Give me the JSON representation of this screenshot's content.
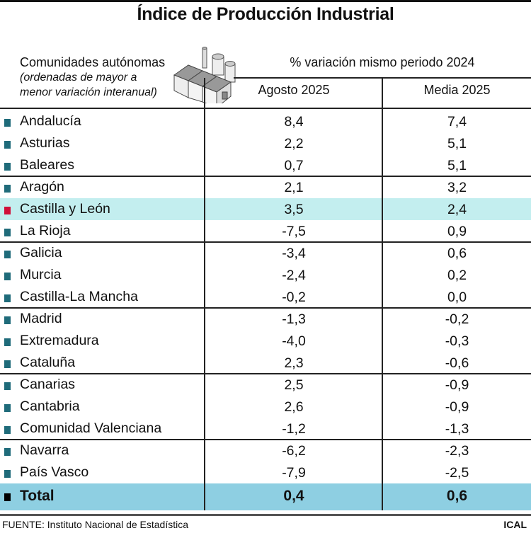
{
  "title": "Índice de Producción Industrial",
  "header": {
    "row_label": "Comunidades autónomas",
    "row_note_1": "(ordenadas de mayor a",
    "row_note_2": "menor variación interanual)",
    "super_header": "% variación mismo periodo 2024",
    "icon": "factory-icon"
  },
  "colors": {
    "marker": "#1f6b7a",
    "highlight_marker": "#d0103a",
    "highlight_row": "#c3eeef",
    "total_row": "#8ecfe2"
  },
  "chart_data": {
    "type": "table",
    "title": "Índice de Producción Industrial",
    "columns": [
      "Agosto 2025",
      "Media 2025"
    ],
    "rows": [
      {
        "name": "Andalucía",
        "agosto": "8,4",
        "media": "7,4"
      },
      {
        "name": "Asturias",
        "agosto": "2,2",
        "media": "5,1"
      },
      {
        "name": "Baleares",
        "agosto": "0,7",
        "media": "5,1"
      },
      {
        "name": "Aragón",
        "agosto": "2,1",
        "media": "3,2"
      },
      {
        "name": "Castilla y León",
        "agosto": "3,5",
        "media": "2,4",
        "highlighted": true
      },
      {
        "name": "La Rioja",
        "agosto": "-7,5",
        "media": "0,9"
      },
      {
        "name": "Galicia",
        "agosto": "-3,4",
        "media": "0,6"
      },
      {
        "name": "Murcia",
        "agosto": "-2,4",
        "media": "0,2"
      },
      {
        "name": "Castilla-La Mancha",
        "agosto": "-0,2",
        "media": "0,0"
      },
      {
        "name": "Madrid",
        "agosto": "-1,3",
        "media": "-0,2"
      },
      {
        "name": "Extremadura",
        "agosto": "-4,0",
        "media": "-0,3"
      },
      {
        "name": "Cataluña",
        "agosto": "2,3",
        "media": "-0,6"
      },
      {
        "name": "Canarias",
        "agosto": "2,5",
        "media": "-0,9"
      },
      {
        "name": "Cantabria",
        "agosto": "2,6",
        "media": "-0,9"
      },
      {
        "name": "Comunidad Valenciana",
        "agosto": "-1,2",
        "media": "-1,3"
      },
      {
        "name": "Navarra",
        "agosto": "-6,2",
        "media": "-2,3"
      },
      {
        "name": "País Vasco",
        "agosto": "-7,9",
        "media": "-2,5"
      }
    ],
    "total": {
      "name": "Total",
      "agosto": "0,4",
      "media": "0,6"
    }
  },
  "footer": {
    "source": "Instituto Nacional de Estadística",
    "source_label": "FUENTE:",
    "brand": "ICAL"
  }
}
